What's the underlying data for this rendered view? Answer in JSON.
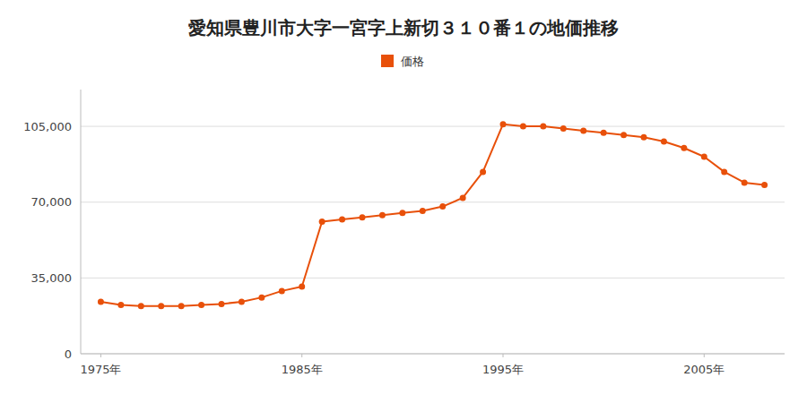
{
  "chart_data": {
    "type": "line",
    "title": "愛知県豊川市大字一宮字上新切３１０番１の地価推移",
    "x": [
      1975,
      1976,
      1977,
      1978,
      1979,
      1980,
      1981,
      1982,
      1983,
      1984,
      1985,
      1986,
      1987,
      1988,
      1989,
      1990,
      1991,
      1992,
      1993,
      1994,
      1995,
      1996,
      1997,
      1998,
      1999,
      2000,
      2001,
      2002,
      2003,
      2004,
      2005,
      2006,
      2007,
      2008
    ],
    "series": [
      {
        "name": "価格",
        "color": "#e8500a",
        "marker": "circle",
        "line_style": "solid",
        "values": [
          24000,
          22500,
          22000,
          22000,
          22000,
          22500,
          23000,
          24000,
          26000,
          29000,
          31000,
          61000,
          62000,
          63000,
          64000,
          65000,
          66000,
          68000,
          72000,
          84000,
          106000,
          105000,
          105000,
          104000,
          103000,
          102000,
          101000,
          100000,
          98000,
          95000,
          91000,
          84000,
          79000,
          78000
        ]
      }
    ],
    "xlim": [
      1974,
      2009
    ],
    "xticks": [
      {
        "value": 1975,
        "label": "1975年"
      },
      {
        "value": 1985,
        "label": "1985年"
      },
      {
        "value": 1995,
        "label": "1995年"
      },
      {
        "value": 2005,
        "label": "2005年"
      }
    ],
    "ylim": [
      0,
      122000
    ],
    "yticks": [
      0,
      {
        "value": 35000,
        "label": "35,000"
      },
      {
        "value": 70000,
        "label": "70,000"
      },
      {
        "value": 105000,
        "label": "105,000"
      }
    ],
    "grid": true,
    "legend": "top"
  }
}
